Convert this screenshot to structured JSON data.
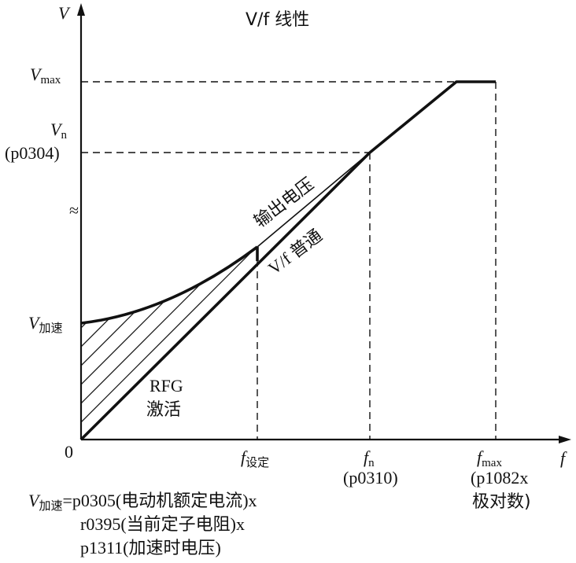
{
  "title": "V/f 线性",
  "axes": {
    "y_label": "V",
    "x_label": "f",
    "origin": "0",
    "break_mark": "≈"
  },
  "y_ticks": {
    "vmax": {
      "main": "V",
      "sub": "max"
    },
    "vn": {
      "main": "V",
      "sub": "n",
      "param": "(p0304)"
    },
    "vboost": {
      "main": "V",
      "sub": "加速"
    }
  },
  "x_ticks": {
    "fset": {
      "main": "f",
      "sub": "设定"
    },
    "fn": {
      "main": "f",
      "sub": "n",
      "param": "(p0310)"
    },
    "fmax": {
      "main": "f",
      "sub": "max",
      "line1": "(p1082x",
      "line2": "极对数)"
    }
  },
  "curve_labels": {
    "output_voltage": "输出电压",
    "vf_normal": "V/f 普通",
    "rfg_line1": "RFG",
    "rfg_line2": "激活"
  },
  "formula": {
    "lhs_main": "V",
    "lhs_sub": "加速",
    "line1": "=p0305(电动机额定电流)x",
    "line2": "r0395(当前定子电阻)x",
    "line3": "p1311(加速时电压)"
  }
}
